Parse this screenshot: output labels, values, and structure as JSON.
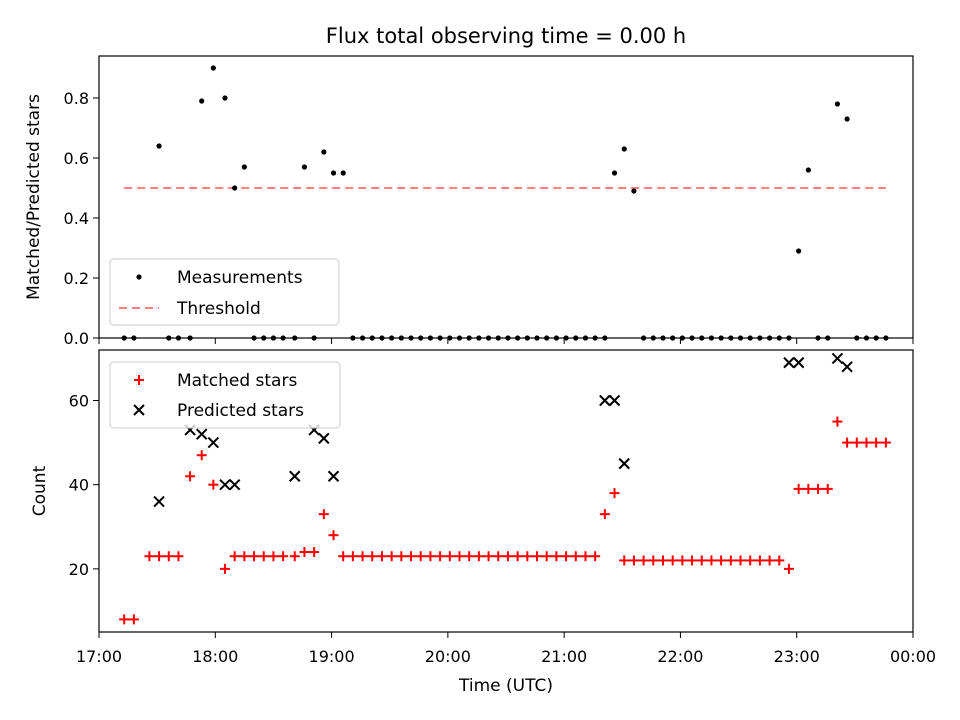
{
  "chart_data": [
    {
      "type": "scatter",
      "title": "Flux total observing time = 0.00 h",
      "ylabel": "Matched/Predicted stars",
      "xlim": [
        "17:00",
        "00:00"
      ],
      "ylim": [
        0.0,
        0.94
      ],
      "yticks": [
        "0.0",
        "0.2",
        "0.4",
        "0.6",
        "0.8"
      ],
      "legend_position": "lower-left",
      "series": [
        {
          "name": "Measurements",
          "color": "#000000",
          "marker": "dot",
          "x": [
            "17:13",
            "17:18",
            "17:31",
            "17:36",
            "17:41",
            "17:47",
            "17:53",
            "17:59",
            "18:05",
            "18:10",
            "18:15",
            "18:20",
            "18:25",
            "18:30",
            "18:35",
            "18:41",
            "18:46",
            "18:51",
            "18:56",
            "19:01",
            "19:06",
            "19:11",
            "19:16",
            "19:21",
            "19:26",
            "19:31",
            "19:36",
            "19:41",
            "19:46",
            "19:51",
            "19:56",
            "20:01",
            "20:06",
            "20:11",
            "20:16",
            "20:21",
            "20:26",
            "20:31",
            "20:36",
            "20:41",
            "20:46",
            "20:51",
            "20:56",
            "21:01",
            "21:06",
            "21:11",
            "21:16",
            "21:21",
            "21:26",
            "21:31",
            "21:36",
            "21:41",
            "21:46",
            "21:51",
            "21:56",
            "22:01",
            "22:06",
            "22:11",
            "22:16",
            "22:21",
            "22:26",
            "22:31",
            "22:36",
            "22:41",
            "22:46",
            "22:51",
            "22:56",
            "23:01",
            "23:06",
            "23:11",
            "23:16",
            "23:21",
            "23:26",
            "23:31",
            "23:36",
            "23:41",
            "23:46"
          ],
          "y": [
            0,
            0,
            0.64,
            0,
            0,
            0,
            0.79,
            0.9,
            0.8,
            0.5,
            0.57,
            0,
            0,
            0,
            0,
            0,
            0.57,
            0,
            0.62,
            0.55,
            0.55,
            0,
            0,
            0,
            0,
            0,
            0,
            0,
            0,
            0,
            0,
            0,
            0,
            0,
            0,
            0,
            0,
            0,
            0,
            0,
            0,
            0,
            0,
            0,
            0,
            0,
            0,
            0,
            0.55,
            0.63,
            0.49,
            0,
            0,
            0,
            0,
            0,
            0,
            0,
            0,
            0,
            0,
            0,
            0,
            0,
            0,
            0,
            0,
            0.29,
            0.56,
            0,
            0,
            0.78,
            0.73,
            0,
            0,
            0,
            0
          ]
        },
        {
          "name": "Threshold",
          "color": "#ff7f7f",
          "style": "dashed",
          "x": [
            "17:13",
            "23:46"
          ],
          "y": [
            0.5,
            0.5
          ]
        }
      ]
    },
    {
      "type": "scatter",
      "xlabel": "Time (UTC)",
      "ylabel": "Count",
      "xlim": [
        "17:00",
        "00:00"
      ],
      "ylim": [
        5,
        72
      ],
      "yticks": [
        "20",
        "40",
        "60"
      ],
      "xticks": [
        "17:00",
        "18:00",
        "19:00",
        "20:00",
        "21:00",
        "22:00",
        "23:00",
        "00:00"
      ],
      "legend_position": "upper-left",
      "series": [
        {
          "name": "Matched stars",
          "color": "#ff0000",
          "marker": "plus",
          "x": [
            "17:13",
            "17:18",
            "17:26",
            "17:31",
            "17:36",
            "17:41",
            "17:47",
            "17:53",
            "17:59",
            "18:05",
            "18:10",
            "18:15",
            "18:20",
            "18:25",
            "18:30",
            "18:35",
            "18:41",
            "18:46",
            "18:51",
            "18:56",
            "19:01",
            "19:06",
            "19:11",
            "19:16",
            "19:21",
            "19:26",
            "19:31",
            "19:36",
            "19:41",
            "19:46",
            "19:51",
            "19:56",
            "20:01",
            "20:06",
            "20:11",
            "20:16",
            "20:21",
            "20:26",
            "20:31",
            "20:36",
            "20:41",
            "20:46",
            "20:51",
            "20:56",
            "21:01",
            "21:06",
            "21:11",
            "21:16",
            "21:21",
            "21:26",
            "21:31",
            "21:36",
            "21:41",
            "21:46",
            "21:51",
            "21:56",
            "22:01",
            "22:06",
            "22:11",
            "22:16",
            "22:21",
            "22:26",
            "22:31",
            "22:36",
            "22:41",
            "22:46",
            "22:51",
            "22:56",
            "23:01",
            "23:06",
            "23:11",
            "23:16",
            "23:21",
            "23:26",
            "23:31",
            "23:36",
            "23:41",
            "23:46"
          ],
          "y": [
            8,
            8,
            23,
            23,
            23,
            23,
            42,
            47,
            40,
            20,
            23,
            23,
            23,
            23,
            23,
            23,
            23,
            24,
            24,
            33,
            28,
            23,
            23,
            23,
            23,
            23,
            23,
            23,
            23,
            23,
            23,
            23,
            23,
            23,
            23,
            23,
            23,
            23,
            23,
            23,
            23,
            23,
            23,
            23,
            23,
            23,
            23,
            23,
            33,
            38,
            22,
            22,
            22,
            22,
            22,
            22,
            22,
            22,
            22,
            22,
            22,
            22,
            22,
            22,
            22,
            22,
            22,
            20,
            39,
            39,
            39,
            39,
            55,
            50,
            50,
            50,
            50,
            50
          ]
        },
        {
          "name": "Predicted stars",
          "color": "#000000",
          "marker": "x",
          "x": [
            "17:31",
            "17:47",
            "17:53",
            "17:59",
            "18:05",
            "18:10",
            "18:41",
            "18:51",
            "18:56",
            "19:01",
            "21:21",
            "21:26",
            "21:31",
            "22:56",
            "23:01",
            "23:21",
            "23:26"
          ],
          "y": [
            36,
            53,
            52,
            50,
            40,
            40,
            42,
            53,
            51,
            42,
            60,
            60,
            45,
            69,
            69,
            70,
            68
          ]
        }
      ]
    }
  ]
}
